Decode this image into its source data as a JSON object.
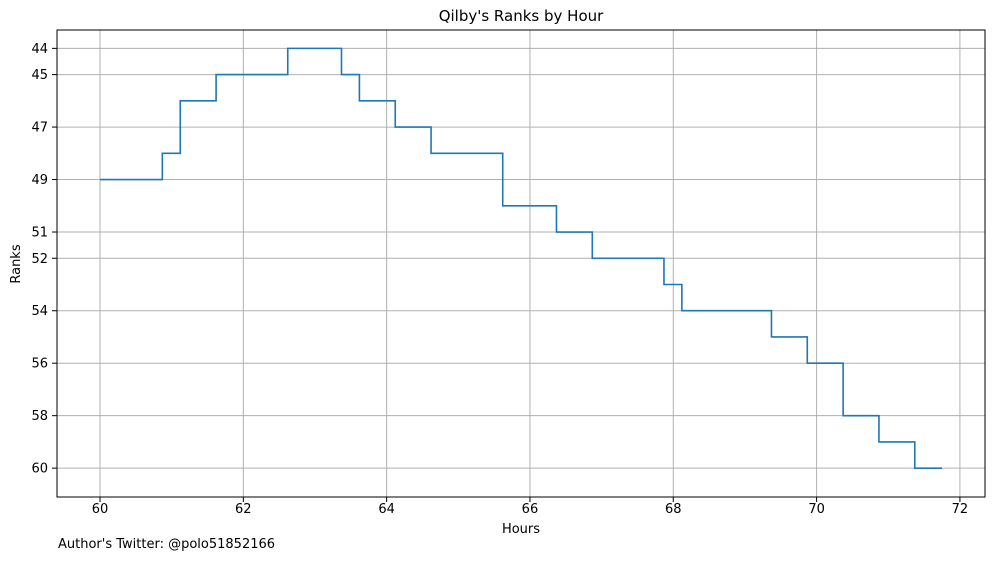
{
  "chart_data": {
    "type": "line",
    "step": "post",
    "title": "Qilby's Ranks by Hour",
    "xlabel": "Hours",
    "ylabel": "Ranks",
    "xlim": [
      59.4,
      72.35
    ],
    "ylim": [
      61.1,
      43.3
    ],
    "xticks": [
      60,
      62,
      64,
      66,
      68,
      70,
      72
    ],
    "yticks": [
      44,
      45,
      47,
      49,
      51,
      52,
      54,
      56,
      58,
      60
    ],
    "grid": true,
    "line_color": "#1f77b4",
    "points": [
      {
        "x": 60.0,
        "y": 49
      },
      {
        "x": 60.87,
        "y": 48
      },
      {
        "x": 61.12,
        "y": 46
      },
      {
        "x": 61.62,
        "y": 45
      },
      {
        "x": 62.62,
        "y": 44
      },
      {
        "x": 63.37,
        "y": 45
      },
      {
        "x": 63.62,
        "y": 46
      },
      {
        "x": 64.12,
        "y": 47
      },
      {
        "x": 64.62,
        "y": 48
      },
      {
        "x": 65.62,
        "y": 50
      },
      {
        "x": 66.37,
        "y": 51
      },
      {
        "x": 66.87,
        "y": 52
      },
      {
        "x": 67.87,
        "y": 53
      },
      {
        "x": 68.12,
        "y": 54
      },
      {
        "x": 69.37,
        "y": 55
      },
      {
        "x": 69.87,
        "y": 56
      },
      {
        "x": 70.37,
        "y": 58
      },
      {
        "x": 70.87,
        "y": 59
      },
      {
        "x": 71.37,
        "y": 60
      },
      {
        "x": 71.75,
        "y": 60
      }
    ]
  },
  "footer": {
    "text": "Author's Twitter: @polo51852166"
  }
}
